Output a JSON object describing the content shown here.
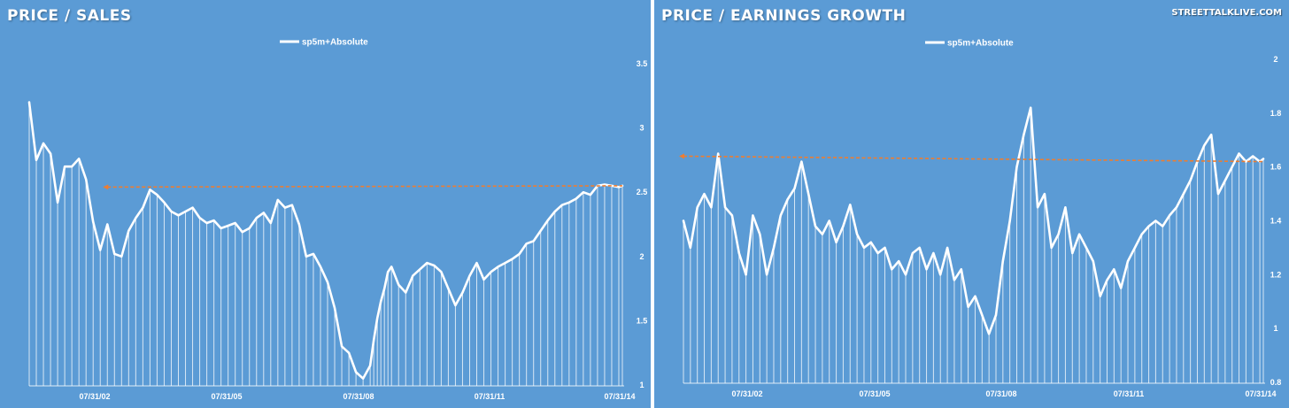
{
  "brand": "STREETTALKLIVE.COM",
  "colors": {
    "background": "#5b9bd5",
    "line": "#ffffff",
    "trend": "#ed7d31"
  },
  "chart_data": [
    {
      "type": "line",
      "title": "PRICE / SALES",
      "legend": "sp5m+Absolute",
      "legend_position": "top-center",
      "grid": false,
      "x_tick_labels": [
        "07/31/02",
        "07/31/05",
        "07/31/08",
        "07/31/11",
        "07/31/14"
      ],
      "y_tick_labels": [
        "3.5",
        "3",
        "2.5",
        "2",
        "1.5",
        "1"
      ],
      "ylim": [
        1,
        3.5
      ],
      "x_range": [
        "2000-09",
        "2014-08"
      ],
      "series": [
        {
          "name": "sp5m+Absolute",
          "x": [
            "2000-09",
            "2000-11",
            "2001-01",
            "2001-03",
            "2001-05",
            "2001-07",
            "2001-09",
            "2001-11",
            "2002-01",
            "2002-03",
            "2002-05",
            "2002-07",
            "2002-09",
            "2002-11",
            "2003-01",
            "2003-03",
            "2003-05",
            "2003-07",
            "2003-09",
            "2003-11",
            "2004-01",
            "2004-03",
            "2004-05",
            "2004-07",
            "2004-09",
            "2004-11",
            "2005-01",
            "2005-03",
            "2005-05",
            "2005-07",
            "2005-09",
            "2005-11",
            "2006-01",
            "2006-03",
            "2006-05",
            "2006-07",
            "2006-09",
            "2006-11",
            "2007-01",
            "2007-03",
            "2007-05",
            "2007-07",
            "2007-09",
            "2007-11",
            "2008-01",
            "2008-03",
            "2008-05",
            "2008-07",
            "2008-09",
            "2008-10",
            "2008-11",
            "2008-12",
            "2009-01",
            "2009-02",
            "2009-03",
            "2009-05",
            "2009-07",
            "2009-09",
            "2009-11",
            "2010-01",
            "2010-03",
            "2010-05",
            "2010-07",
            "2010-09",
            "2010-11",
            "2011-01",
            "2011-03",
            "2011-05",
            "2011-07",
            "2011-09",
            "2011-11",
            "2012-01",
            "2012-03",
            "2012-05",
            "2012-07",
            "2012-09",
            "2012-11",
            "2013-01",
            "2013-03",
            "2013-05",
            "2013-07",
            "2013-09",
            "2013-11",
            "2014-01",
            "2014-03",
            "2014-05",
            "2014-07",
            "2014-08"
          ],
          "values": [
            3.2,
            2.75,
            2.88,
            2.8,
            2.42,
            2.7,
            2.7,
            2.76,
            2.6,
            2.27,
            2.05,
            2.25,
            2.02,
            2.0,
            2.2,
            2.3,
            2.38,
            2.52,
            2.48,
            2.42,
            2.35,
            2.32,
            2.35,
            2.38,
            2.3,
            2.26,
            2.28,
            2.22,
            2.24,
            2.26,
            2.19,
            2.22,
            2.3,
            2.34,
            2.26,
            2.44,
            2.38,
            2.4,
            2.25,
            2.0,
            2.02,
            1.92,
            1.8,
            1.6,
            1.3,
            1.25,
            1.1,
            1.05,
            1.15,
            1.35,
            1.52,
            1.65,
            1.75,
            1.88,
            1.92,
            1.78,
            1.72,
            1.85,
            1.9,
            1.95,
            1.93,
            1.88,
            1.75,
            1.62,
            1.72,
            1.85,
            1.95,
            1.82,
            1.88,
            1.92,
            1.95,
            1.98,
            2.02,
            2.1,
            2.12,
            2.2,
            2.28,
            2.35,
            2.4,
            2.42,
            2.45,
            2.5,
            2.48,
            2.55,
            2.56,
            2.55,
            2.54,
            2.55
          ]
        }
      ],
      "trend_line": {
        "x": [
          "2002-07",
          "2014-08"
        ],
        "y": [
          2.54,
          2.55
        ]
      }
    },
    {
      "type": "line",
      "title": "PRICE / EARNINGS GROWTH",
      "legend": "sp5m+Absolute",
      "legend_position": "top-center",
      "grid": false,
      "x_tick_labels": [
        "07/31/02",
        "07/31/05",
        "07/31/08",
        "07/31/11",
        "07/31/14"
      ],
      "y_tick_labels": [
        "2",
        "1.8",
        "1.6",
        "1.4",
        "1.2",
        "1",
        "0.8"
      ],
      "ylim": [
        0.8,
        2
      ],
      "x_range": [
        "2000-09",
        "2014-08"
      ],
      "series": [
        {
          "name": "sp5m+Absolute",
          "x": [
            "2000-09",
            "2000-11",
            "2001-01",
            "2001-03",
            "2001-05",
            "2001-07",
            "2001-09",
            "2001-11",
            "2002-01",
            "2002-03",
            "2002-05",
            "2002-07",
            "2002-09",
            "2002-11",
            "2003-01",
            "2003-03",
            "2003-05",
            "2003-07",
            "2003-09",
            "2003-11",
            "2004-01",
            "2004-03",
            "2004-05",
            "2004-07",
            "2004-09",
            "2004-11",
            "2005-01",
            "2005-03",
            "2005-05",
            "2005-07",
            "2005-09",
            "2005-11",
            "2006-01",
            "2006-03",
            "2006-05",
            "2006-07",
            "2006-09",
            "2006-11",
            "2007-01",
            "2007-03",
            "2007-05",
            "2007-07",
            "2007-09",
            "2007-11",
            "2008-01",
            "2008-03",
            "2008-05",
            "2008-07",
            "2008-09",
            "2008-11",
            "2009-01",
            "2009-03",
            "2009-05",
            "2009-07",
            "2009-09",
            "2009-11",
            "2010-01",
            "2010-03",
            "2010-05",
            "2010-07",
            "2010-09",
            "2010-11",
            "2011-01",
            "2011-03",
            "2011-05",
            "2011-07",
            "2011-09",
            "2011-11",
            "2012-01",
            "2012-03",
            "2012-05",
            "2012-07",
            "2012-09",
            "2012-11",
            "2013-01",
            "2013-03",
            "2013-05",
            "2013-07",
            "2013-09",
            "2013-11",
            "2014-01",
            "2014-03",
            "2014-05",
            "2014-07",
            "2014-08"
          ],
          "values": [
            1.4,
            1.3,
            1.45,
            1.5,
            1.45,
            1.65,
            1.45,
            1.42,
            1.28,
            1.2,
            1.42,
            1.35,
            1.2,
            1.3,
            1.42,
            1.48,
            1.52,
            1.62,
            1.5,
            1.38,
            1.35,
            1.4,
            1.32,
            1.38,
            1.46,
            1.35,
            1.3,
            1.32,
            1.28,
            1.3,
            1.22,
            1.25,
            1.2,
            1.28,
            1.3,
            1.22,
            1.28,
            1.2,
            1.3,
            1.18,
            1.22,
            1.08,
            1.12,
            1.05,
            0.98,
            1.05,
            1.25,
            1.4,
            1.6,
            1.72,
            1.82,
            1.45,
            1.5,
            1.3,
            1.35,
            1.45,
            1.28,
            1.35,
            1.3,
            1.25,
            1.12,
            1.18,
            1.22,
            1.15,
            1.25,
            1.3,
            1.35,
            1.38,
            1.4,
            1.38,
            1.42,
            1.45,
            1.5,
            1.55,
            1.62,
            1.68,
            1.72,
            1.5,
            1.55,
            1.6,
            1.65,
            1.62,
            1.64,
            1.62,
            1.63
          ]
        }
      ],
      "trend_line": {
        "x": [
          "2000-09",
          "2014-08"
        ],
        "y": [
          1.64,
          1.62
        ]
      }
    }
  ]
}
